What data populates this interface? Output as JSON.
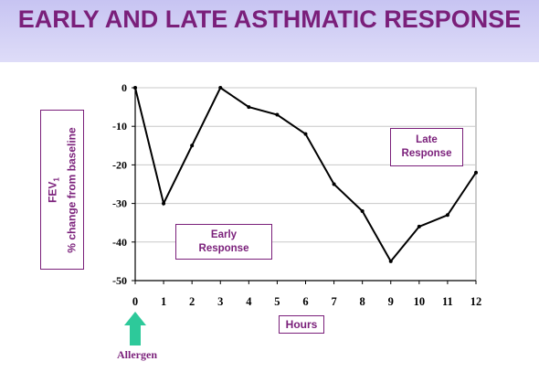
{
  "header": {
    "title": "EARLY AND LATE ASTHMATIC RESPONSE"
  },
  "y_axis": {
    "line1": "FEV",
    "sub": "1",
    "line2": "% change from baseline"
  },
  "x_axis": {
    "label": "Hours"
  },
  "annotations": {
    "early_line1": "Early",
    "early_line2": "Response",
    "late_line1": "Late",
    "late_line2": "Response",
    "allergen": "Allergen"
  },
  "colors": {
    "accent": "#7a1f7a",
    "arrow": "#2dc99a",
    "line": "#000000",
    "header_band": "#cfcdf4"
  },
  "chart_data": {
    "type": "line",
    "title": "EARLY AND LATE ASTHMATIC RESPONSE",
    "xlabel": "Hours",
    "ylabel": "FEV1 % change from baseline",
    "x": [
      0,
      1,
      2,
      3,
      4,
      5,
      6,
      7,
      8,
      9,
      10,
      11,
      12
    ],
    "series": [
      {
        "values": [
          0,
          -30,
          -15,
          0,
          -5,
          -7,
          -12,
          -25,
          -32,
          -45,
          -36,
          -33,
          -22
        ]
      }
    ],
    "xlim": [
      0,
      12
    ],
    "ylim": [
      -50,
      0
    ],
    "x_ticks": [
      "0",
      "1",
      "2",
      "3",
      "4",
      "5",
      "6",
      "7",
      "8",
      "9",
      "10",
      "11",
      "12"
    ],
    "y_ticks": [
      "0",
      "-10",
      "-20",
      "-30",
      "-40",
      "-50"
    ],
    "grid": true,
    "annotations": [
      "Early Response",
      "Late Response",
      "Allergen"
    ]
  }
}
